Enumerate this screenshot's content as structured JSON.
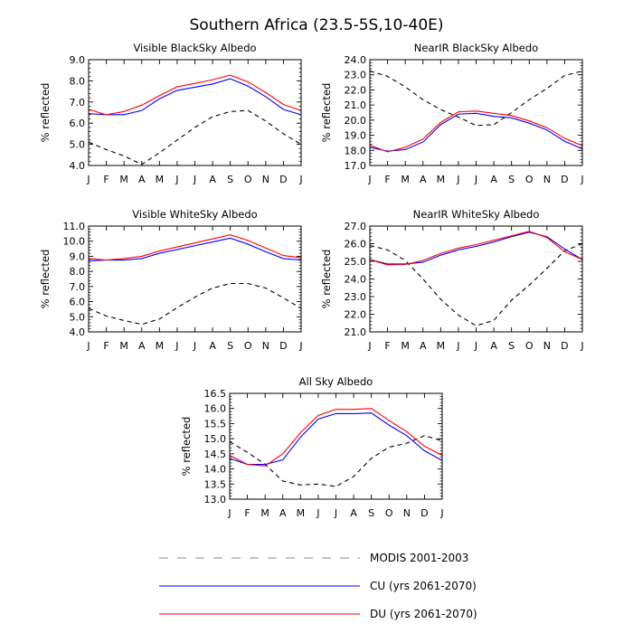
{
  "figure": {
    "title": "Southern Africa (23.5-5S,10-40E)",
    "legend": [
      {
        "label": "MODIS 2001-2003",
        "color": "#000000",
        "dash": true
      },
      {
        "label": "CU (yrs 2061-2070)",
        "color": "#0000ff",
        "dash": false
      },
      {
        "label": "DU (yrs 2061-2070)",
        "color": "#ff0000",
        "dash": false
      }
    ]
  },
  "chart_data": [
    {
      "type": "line",
      "title": "Visible BlackSky Albedo",
      "ylabel": "% reflected",
      "categories": [
        "J",
        "F",
        "M",
        "A",
        "M",
        "J",
        "J",
        "A",
        "S",
        "O",
        "N",
        "D",
        "J"
      ],
      "ylim": [
        4.0,
        9.0
      ],
      "yticks": [
        "4.0",
        "5.0",
        "6.0",
        "7.0",
        "8.0",
        "9.0"
      ],
      "series": [
        {
          "name": "MODIS 2001-2003",
          "color": "#000000",
          "dash": true,
          "values": [
            5.1,
            4.75,
            4.45,
            4.05,
            4.6,
            5.2,
            5.8,
            6.3,
            6.55,
            6.6,
            6.1,
            5.5,
            5.0
          ]
        },
        {
          "name": "CU (yrs 2061-2070)",
          "color": "#0000ff",
          "dash": false,
          "values": [
            6.45,
            6.4,
            6.4,
            6.6,
            7.15,
            7.55,
            7.7,
            7.85,
            8.1,
            7.75,
            7.25,
            6.65,
            6.4
          ]
        },
        {
          "name": "DU (yrs 2061-2070)",
          "color": "#ff0000",
          "dash": false,
          "values": [
            6.65,
            6.4,
            6.55,
            6.85,
            7.3,
            7.72,
            7.88,
            8.05,
            8.27,
            7.95,
            7.45,
            6.88,
            6.6
          ]
        }
      ]
    },
    {
      "type": "line",
      "title": "NearIR BlackSky Albedo",
      "ylabel": "% reflected",
      "categories": [
        "J",
        "F",
        "M",
        "A",
        "M",
        "J",
        "J",
        "A",
        "S",
        "O",
        "N",
        "D",
        "J"
      ],
      "ylim": [
        17.0,
        24.0
      ],
      "yticks": [
        "17.0",
        "18.0",
        "19.0",
        "20.0",
        "21.0",
        "22.0",
        "23.0",
        "24.0"
      ],
      "series": [
        {
          "name": "MODIS 2001-2003",
          "color": "#000000",
          "dash": true,
          "values": [
            23.25,
            22.9,
            22.2,
            21.35,
            20.7,
            20.2,
            19.65,
            19.7,
            20.5,
            21.35,
            22.1,
            22.95,
            23.25
          ]
        },
        {
          "name": "CU (yrs 2061-2070)",
          "color": "#0000ff",
          "dash": false,
          "values": [
            18.2,
            17.95,
            18.05,
            18.55,
            19.7,
            20.4,
            20.45,
            20.25,
            20.15,
            19.8,
            19.35,
            18.6,
            18.1
          ]
        },
        {
          "name": "DU (yrs 2061-2070)",
          "color": "#ff0000",
          "dash": false,
          "values": [
            18.35,
            17.9,
            18.2,
            18.75,
            19.85,
            20.55,
            20.6,
            20.45,
            20.3,
            19.95,
            19.5,
            18.8,
            18.3
          ]
        }
      ]
    },
    {
      "type": "line",
      "title": "Visible WhiteSky Albedo",
      "ylabel": "% reflected",
      "categories": [
        "J",
        "F",
        "M",
        "A",
        "M",
        "J",
        "J",
        "A",
        "S",
        "O",
        "N",
        "D",
        "J"
      ],
      "ylim": [
        4.0,
        11.0
      ],
      "yticks": [
        "4.0",
        "5.0",
        "6.0",
        "7.0",
        "8.0",
        "9.0",
        "10.0",
        "11.0"
      ],
      "series": [
        {
          "name": "MODIS 2001-2003",
          "color": "#000000",
          "dash": true,
          "values": [
            5.55,
            5.05,
            4.75,
            4.5,
            4.85,
            5.6,
            6.3,
            6.9,
            7.2,
            7.2,
            6.9,
            6.25,
            5.55
          ]
        },
        {
          "name": "CU (yrs 2061-2070)",
          "color": "#0000ff",
          "dash": false,
          "values": [
            8.7,
            8.75,
            8.75,
            8.85,
            9.2,
            9.45,
            9.7,
            9.95,
            10.2,
            9.8,
            9.3,
            8.85,
            8.75
          ]
        },
        {
          "name": "DU (yrs 2061-2070)",
          "color": "#ff0000",
          "dash": false,
          "values": [
            8.85,
            8.75,
            8.85,
            9.0,
            9.35,
            9.62,
            9.88,
            10.15,
            10.42,
            10.05,
            9.55,
            9.05,
            8.9
          ]
        }
      ]
    },
    {
      "type": "line",
      "title": "NearIR WhiteSky Albedo",
      "ylabel": "% reflected",
      "categories": [
        "J",
        "F",
        "M",
        "A",
        "M",
        "J",
        "J",
        "A",
        "S",
        "O",
        "N",
        "D",
        "J"
      ],
      "ylim": [
        21.0,
        27.0
      ],
      "yticks": [
        "21.0",
        "22.0",
        "23.0",
        "24.0",
        "25.0",
        "26.0",
        "27.0"
      ],
      "series": [
        {
          "name": "MODIS 2001-2003",
          "color": "#000000",
          "dash": true,
          "values": [
            25.9,
            25.65,
            25.05,
            24.0,
            22.85,
            21.95,
            21.35,
            21.65,
            22.8,
            23.65,
            24.6,
            25.6,
            26.0
          ]
        },
        {
          "name": "CU (yrs 2061-2070)",
          "color": "#0000ff",
          "dash": false,
          "values": [
            25.1,
            24.85,
            24.85,
            24.95,
            25.35,
            25.65,
            25.85,
            26.1,
            26.4,
            26.65,
            26.4,
            25.7,
            25.1
          ]
        },
        {
          "name": "DU (yrs 2061-2070)",
          "color": "#ff0000",
          "dash": false,
          "values": [
            25.1,
            24.8,
            24.82,
            25.05,
            25.45,
            25.75,
            25.95,
            26.2,
            26.45,
            26.7,
            26.35,
            25.55,
            25.1
          ]
        }
      ]
    },
    {
      "type": "line",
      "title": "All Sky Albedo",
      "ylabel": "% reflected",
      "categories": [
        "J",
        "F",
        "M",
        "A",
        "M",
        "J",
        "J",
        "A",
        "S",
        "O",
        "N",
        "D",
        "J"
      ],
      "ylim": [
        13.0,
        16.5
      ],
      "yticks": [
        "13.0",
        "13.5",
        "14.0",
        "14.5",
        "15.0",
        "15.5",
        "16.0",
        "16.5"
      ],
      "series": [
        {
          "name": "MODIS 2001-2003",
          "color": "#000000",
          "dash": true,
          "values": [
            14.9,
            14.55,
            14.15,
            13.6,
            13.47,
            13.5,
            13.42,
            13.75,
            14.35,
            14.72,
            14.85,
            15.1,
            14.93
          ]
        },
        {
          "name": "CU (yrs 2061-2070)",
          "color": "#0000ff",
          "dash": false,
          "values": [
            14.35,
            14.15,
            14.15,
            14.3,
            15.05,
            15.65,
            15.83,
            15.83,
            15.85,
            15.45,
            15.1,
            14.6,
            14.28
          ]
        },
        {
          "name": "DU (yrs 2061-2070)",
          "color": "#ff0000",
          "dash": false,
          "values": [
            14.45,
            14.15,
            14.1,
            14.5,
            15.2,
            15.77,
            15.97,
            15.97,
            16.0,
            15.6,
            15.23,
            14.75,
            14.45
          ]
        }
      ]
    }
  ]
}
